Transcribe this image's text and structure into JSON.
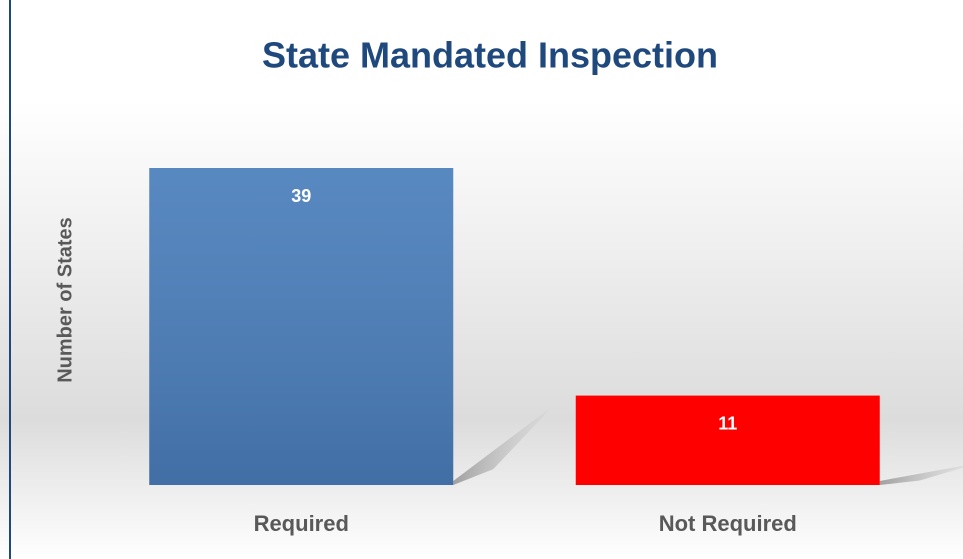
{
  "chart_data": {
    "type": "bar",
    "title": "State Mandated Inspection",
    "y_label": "Number of States",
    "categories": [
      "Required",
      "Not Required"
    ],
    "values": [
      39,
      11
    ],
    "colors": [
      "#4a7ebb",
      "#ff0000"
    ],
    "ylim": [
      0,
      39
    ]
  }
}
